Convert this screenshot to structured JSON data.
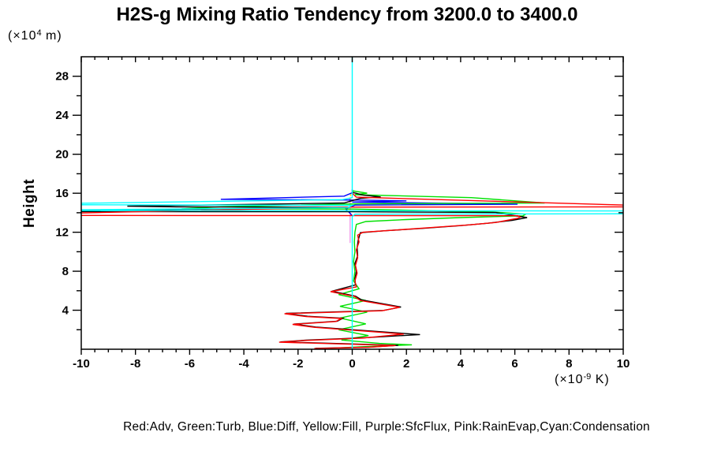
{
  "title": "H2S-g Mixing Ratio Tendency from 3200.0 to 3400.0",
  "ylabel": "Height",
  "y_unit": {
    "pre": "(×10",
    "sup": "4",
    "post": " m)"
  },
  "x_unit": {
    "pre": "(×10",
    "sup": "-9",
    "post": " K)"
  },
  "legend": "Red:Adv, Green:Turb, Blue:Diff, Yellow:Fill, Purple:SfcFlux, Pink:RainEvap,Cyan:Condensation",
  "chart_data": {
    "type": "line",
    "title": "H2S-g Mixing Ratio Tendency from 3200.0 to 3400.0",
    "xlabel": "(x10^-9 K)",
    "ylabel": "Height (x10^4 m)",
    "xlim": [
      -10,
      10
    ],
    "ylim": [
      0,
      30
    ],
    "x_major_step": 2,
    "x_minor_step": 0.5,
    "y_major_step": 4,
    "y_minor_step": 2,
    "x_tick_labels": [
      "-10",
      "-8",
      "-6",
      "-4",
      "-2",
      "0",
      "2",
      "4",
      "6",
      "8",
      "10"
    ],
    "y_tick_labels": [
      "4",
      "8",
      "12",
      "16",
      "20",
      "24",
      "28"
    ],
    "grid": false,
    "legend_position": "bottom",
    "background": "#ffffff",
    "axis_color": "#000000",
    "series": [
      {
        "name": "Fill",
        "color": "#ffff00",
        "dash": "3,3",
        "points": [
          [
            -0.06,
            15.95
          ],
          [
            -0.06,
            14.95
          ]
        ]
      },
      {
        "name": "SfcFlux",
        "color": "#aa44ff",
        "points": [
          [
            -0.1,
            15.45
          ],
          [
            -0.1,
            15.1
          ]
        ]
      },
      {
        "name": "RainEvap",
        "color": "#f29ae8",
        "points": [
          [
            -0.08,
            15.2
          ],
          [
            -0.08,
            10.9
          ]
        ]
      },
      {
        "name": "Diff",
        "color": "#0000ff",
        "points": [
          [
            0,
            16.4
          ],
          [
            0,
            16.05
          ],
          [
            -0.3,
            15.7
          ],
          [
            -4.85,
            15.38
          ],
          [
            0.2,
            15.3
          ],
          [
            2.0,
            15.22
          ],
          [
            0,
            15.1
          ],
          [
            6.1,
            14.88
          ],
          [
            0.1,
            14.78
          ],
          [
            -0.25,
            14.4
          ],
          [
            -0.1,
            14.0
          ],
          [
            0,
            13.7
          ]
        ]
      },
      {
        "name": "Turb",
        "color": "#00e000",
        "points": [
          [
            0,
            16.25
          ],
          [
            0.55,
            16.0
          ],
          [
            0.1,
            15.85
          ],
          [
            4.4,
            15.55
          ],
          [
            7.1,
            15.0
          ],
          [
            0.3,
            14.92
          ],
          [
            -4.8,
            14.62
          ],
          [
            -6.3,
            14.4
          ],
          [
            0,
            14.38
          ],
          [
            5.2,
            14.08
          ],
          [
            6.4,
            13.85
          ],
          [
            6.3,
            13.68
          ],
          [
            4.0,
            13.5
          ],
          [
            2.0,
            13.3
          ],
          [
            0.5,
            13.1
          ],
          [
            0.15,
            12.8
          ],
          [
            0.1,
            12.0
          ],
          [
            0.08,
            11.0
          ],
          [
            0.1,
            10.0
          ],
          [
            0.05,
            9.0
          ],
          [
            0.1,
            8.0
          ],
          [
            0.05,
            7.0
          ],
          [
            0.25,
            6.2
          ],
          [
            -0.5,
            5.6
          ],
          [
            0.5,
            5.0
          ],
          [
            -0.45,
            4.4
          ],
          [
            0.55,
            3.8
          ],
          [
            -0.45,
            3.2
          ],
          [
            0.5,
            2.6
          ],
          [
            -0.5,
            2.0
          ],
          [
            0.6,
            1.4
          ],
          [
            -0.4,
            0.95
          ],
          [
            1.0,
            0.6
          ],
          [
            2.2,
            0.45
          ],
          [
            0.3,
            0.25
          ],
          [
            -0.8,
            0.1
          ]
        ]
      },
      {
        "name": "Total (unlabeled black)",
        "color": "#000000",
        "points": [
          [
            0,
            16.1
          ],
          [
            0.4,
            15.82
          ],
          [
            1.05,
            15.62
          ],
          [
            0.3,
            15.48
          ],
          [
            -0.3,
            15.0
          ],
          [
            -8.3,
            14.68
          ],
          [
            -6.5,
            14.6
          ],
          [
            -0.2,
            14.56
          ],
          [
            -10.5,
            14.2
          ],
          [
            -10.5,
            14.12
          ],
          [
            0,
            14.1
          ],
          [
            5.3,
            14.02
          ],
          [
            6.45,
            13.5
          ],
          [
            5.9,
            13.22
          ],
          [
            5.0,
            12.92
          ],
          [
            4.0,
            12.68
          ],
          [
            2.6,
            12.4
          ],
          [
            1.2,
            12.15
          ],
          [
            0.3,
            11.95
          ],
          [
            0.22,
            11.2
          ],
          [
            0.18,
            10.4
          ],
          [
            0.2,
            9.6
          ],
          [
            0.1,
            8.8
          ],
          [
            0.15,
            8.0
          ],
          [
            0.1,
            7.2
          ],
          [
            0.12,
            6.6
          ],
          [
            -0.75,
            5.95
          ],
          [
            0.12,
            5.45
          ],
          [
            0.35,
            5.05
          ],
          [
            1.8,
            4.33
          ],
          [
            1.15,
            3.98
          ],
          [
            -2.45,
            3.68
          ],
          [
            -1.65,
            3.38
          ],
          [
            -0.35,
            3.18
          ],
          [
            -0.55,
            2.88
          ],
          [
            -2.15,
            2.58
          ],
          [
            -1.35,
            2.28
          ],
          [
            0.1,
            1.98
          ],
          [
            2.5,
            1.5
          ],
          [
            0.45,
            1.18
          ],
          [
            -1.7,
            0.93
          ],
          [
            -2.65,
            0.75
          ],
          [
            -0.45,
            0.58
          ],
          [
            1.7,
            0.4
          ],
          [
            0.65,
            0.22
          ],
          [
            -1.35,
            0.1
          ]
        ]
      },
      {
        "name": "Adv",
        "color": "#ff0000",
        "points": [
          [
            0,
            16.0
          ],
          [
            0.15,
            15.6
          ],
          [
            10.5,
            14.75
          ],
          [
            10.5,
            14.6
          ],
          [
            0,
            14.58
          ],
          [
            -10.5,
            13.95
          ],
          [
            -10.5,
            13.72
          ],
          [
            6.1,
            13.7
          ],
          [
            6.2,
            13.55
          ],
          [
            6.1,
            13.42
          ],
          [
            5.3,
            13.0
          ],
          [
            4.3,
            12.75
          ],
          [
            3.0,
            12.5
          ],
          [
            1.5,
            12.2
          ],
          [
            0.4,
            12.0
          ],
          [
            0.2,
            11.7
          ],
          [
            0.25,
            11.0
          ],
          [
            0.15,
            10.2
          ],
          [
            0.2,
            9.4
          ],
          [
            0.12,
            8.6
          ],
          [
            0.18,
            7.8
          ],
          [
            0.1,
            7.0
          ],
          [
            0.15,
            6.4
          ],
          [
            -0.8,
            5.9
          ],
          [
            0.1,
            5.4
          ],
          [
            0.3,
            5.0
          ],
          [
            1.75,
            4.3
          ],
          [
            1.1,
            3.95
          ],
          [
            -2.5,
            3.65
          ],
          [
            -1.7,
            3.35
          ],
          [
            -0.4,
            3.15
          ],
          [
            -0.6,
            2.85
          ],
          [
            -2.2,
            2.55
          ],
          [
            -1.4,
            2.25
          ],
          [
            0.05,
            1.95
          ],
          [
            1.9,
            1.55
          ],
          [
            0.4,
            1.15
          ],
          [
            -1.75,
            0.9
          ],
          [
            -2.7,
            0.72
          ],
          [
            -0.5,
            0.55
          ],
          [
            1.6,
            0.38
          ],
          [
            0.6,
            0.2
          ],
          [
            -1.4,
            0.07
          ]
        ]
      },
      {
        "name": "Condensation",
        "color": "#00ffff",
        "points": [
          [
            0,
            30
          ],
          [
            0,
            15.55
          ],
          [
            -0.35,
            15.35
          ],
          [
            -10.5,
            14.95
          ],
          [
            -10.5,
            14.82
          ],
          [
            0,
            14.76
          ],
          [
            -0.15,
            14.52
          ],
          [
            -10.5,
            14.3
          ],
          [
            -10.5,
            14.22
          ],
          [
            10.5,
            14.18
          ],
          [
            10.5,
            13.9
          ],
          [
            0.1,
            13.85
          ],
          [
            0,
            13.6
          ],
          [
            0,
            0
          ]
        ]
      }
    ]
  }
}
